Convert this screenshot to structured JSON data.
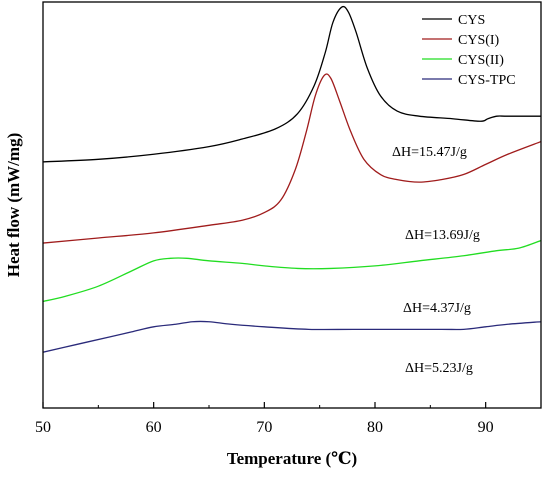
{
  "chart_data": {
    "type": "line",
    "xlabel": "Temperature (℃)",
    "ylabel": "Heat flow (mW/mg)",
    "xlim": [
      50,
      95
    ],
    "xticks": [
      "50",
      "60",
      "70",
      "80",
      "90"
    ],
    "y_tick_labels": "none",
    "grid": false,
    "legend_position": "top-right",
    "series": [
      {
        "name": "CYS",
        "color": "#000000",
        "x": [
          50,
          55,
          60,
          65,
          68,
          71,
          73,
          74.5,
          75.5,
          76.2,
          77,
          77.6,
          78.3,
          79.3,
          80.5,
          82,
          84,
          87,
          89.5,
          90.2,
          91,
          92,
          95
        ],
        "y": [
          0.62,
          0.63,
          0.65,
          0.68,
          0.71,
          0.75,
          0.81,
          0.92,
          1.05,
          1.17,
          1.23,
          1.21,
          1.13,
          0.99,
          0.88,
          0.82,
          0.8,
          0.79,
          0.78,
          0.79,
          0.8,
          0.8,
          0.8
        ],
        "annotation": "ΔH=15.47J/g"
      },
      {
        "name": "CYS(I)",
        "color": "#a01c1c",
        "x": [
          50,
          55,
          60,
          65,
          68,
          70,
          71.5,
          72.8,
          73.8,
          74.6,
          75.4,
          76,
          76.8,
          77.8,
          79,
          80.5,
          82,
          84,
          86,
          88,
          90,
          92,
          95
        ],
        "y": [
          0.3,
          0.32,
          0.34,
          0.37,
          0.39,
          0.42,
          0.47,
          0.59,
          0.74,
          0.88,
          0.96,
          0.95,
          0.86,
          0.74,
          0.63,
          0.57,
          0.55,
          0.54,
          0.55,
          0.57,
          0.61,
          0.65,
          0.7
        ],
        "annotation": "ΔH=13.69J/g"
      },
      {
        "name": "CYS(II)",
        "color": "#22dd22",
        "x": [
          50,
          52,
          55,
          58,
          60,
          61.5,
          63,
          65,
          68,
          70,
          73,
          76,
          80,
          84,
          88,
          91,
          93,
          95
        ],
        "y": [
          0.07,
          0.09,
          0.13,
          0.19,
          0.23,
          0.24,
          0.24,
          0.23,
          0.22,
          0.21,
          0.2,
          0.2,
          0.21,
          0.23,
          0.25,
          0.27,
          0.28,
          0.31
        ],
        "annotation": "ΔH=4.37J/g"
      },
      {
        "name": "CYS-TPC",
        "color": "#2a2a7a",
        "x": [
          50,
          53,
          56,
          58,
          60,
          62,
          63.5,
          65,
          67,
          70,
          74,
          78,
          82,
          86,
          88,
          90,
          92,
          95
        ],
        "y": [
          -0.13,
          -0.1,
          -0.07,
          -0.05,
          -0.03,
          -0.02,
          -0.01,
          -0.01,
          -0.02,
          -0.03,
          -0.04,
          -0.04,
          -0.04,
          -0.04,
          -0.04,
          -0.03,
          -0.02,
          -0.01
        ],
        "annotation": "ΔH=5.23J/g"
      }
    ]
  }
}
